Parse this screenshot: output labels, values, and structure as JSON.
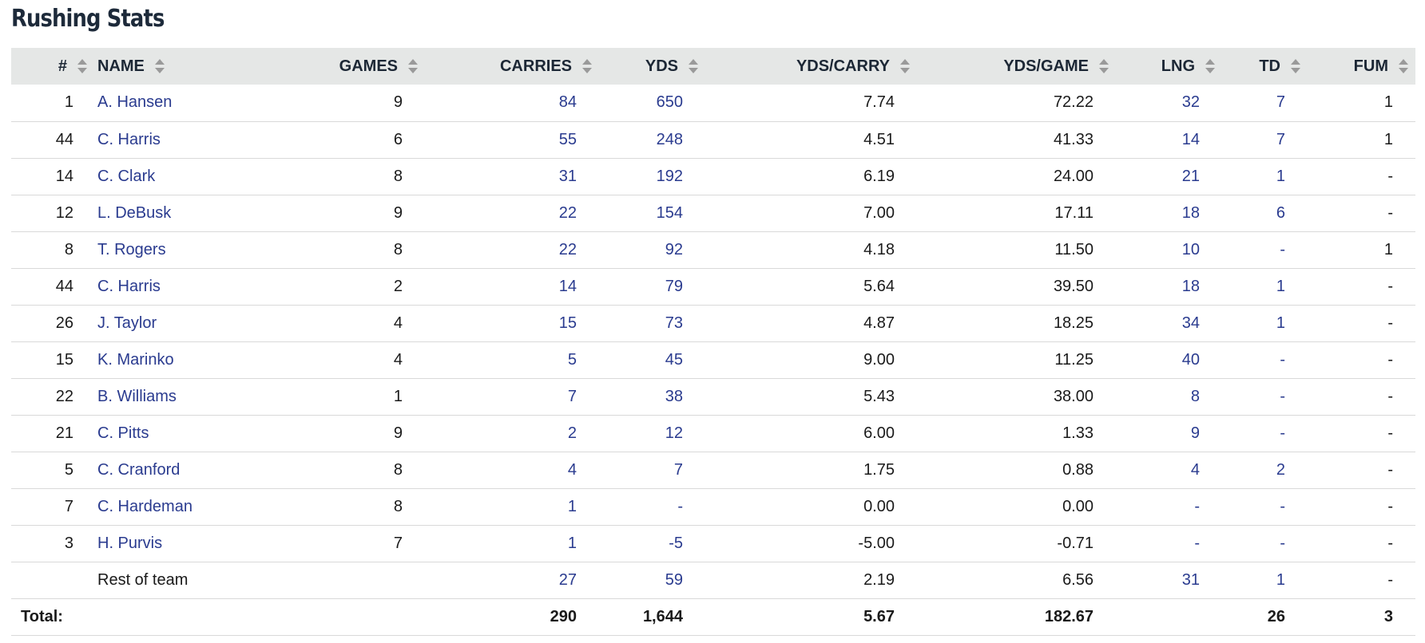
{
  "title": "Rushing Stats",
  "colors": {
    "header_bg": "#e5e7e6",
    "link": "#2a3b8f",
    "row_border": "#d9d9d9"
  },
  "columns": [
    "#",
    "NAME",
    "GAMES",
    "CARRIES",
    "YDS",
    "YDS/CARRY",
    "YDS/GAME",
    "LNG",
    "TD",
    "FUM"
  ],
  "sort_icon": "sort-up-down-icon",
  "rows": [
    {
      "num": "1",
      "name": "A. Hansen",
      "games": "9",
      "carries": "84",
      "yds": "650",
      "ypc": "7.74",
      "ypg": "72.22",
      "lng": "32",
      "td": "7",
      "fum": "1"
    },
    {
      "num": "44",
      "name": "C. Harris",
      "games": "6",
      "carries": "55",
      "yds": "248",
      "ypc": "4.51",
      "ypg": "41.33",
      "lng": "14",
      "td": "7",
      "fum": "1"
    },
    {
      "num": "14",
      "name": "C. Clark",
      "games": "8",
      "carries": "31",
      "yds": "192",
      "ypc": "6.19",
      "ypg": "24.00",
      "lng": "21",
      "td": "1",
      "fum": "-"
    },
    {
      "num": "12",
      "name": "L. DeBusk",
      "games": "9",
      "carries": "22",
      "yds": "154",
      "ypc": "7.00",
      "ypg": "17.11",
      "lng": "18",
      "td": "6",
      "fum": "-"
    },
    {
      "num": "8",
      "name": "T. Rogers",
      "games": "8",
      "carries": "22",
      "yds": "92",
      "ypc": "4.18",
      "ypg": "11.50",
      "lng": "10",
      "td": "-",
      "fum": "1"
    },
    {
      "num": "44",
      "name": "C. Harris",
      "games": "2",
      "carries": "14",
      "yds": "79",
      "ypc": "5.64",
      "ypg": "39.50",
      "lng": "18",
      "td": "1",
      "fum": "-"
    },
    {
      "num": "26",
      "name": "J. Taylor",
      "games": "4",
      "carries": "15",
      "yds": "73",
      "ypc": "4.87",
      "ypg": "18.25",
      "lng": "34",
      "td": "1",
      "fum": "-"
    },
    {
      "num": "15",
      "name": "K. Marinko",
      "games": "4",
      "carries": "5",
      "yds": "45",
      "ypc": "9.00",
      "ypg": "11.25",
      "lng": "40",
      "td": "-",
      "fum": "-"
    },
    {
      "num": "22",
      "name": "B. Williams",
      "games": "1",
      "carries": "7",
      "yds": "38",
      "ypc": "5.43",
      "ypg": "38.00",
      "lng": "8",
      "td": "-",
      "fum": "-"
    },
    {
      "num": "21",
      "name": "C. Pitts",
      "games": "9",
      "carries": "2",
      "yds": "12",
      "ypc": "6.00",
      "ypg": "1.33",
      "lng": "9",
      "td": "-",
      "fum": "-"
    },
    {
      "num": "5",
      "name": "C. Cranford",
      "games": "8",
      "carries": "4",
      "yds": "7",
      "ypc": "1.75",
      "ypg": "0.88",
      "lng": "4",
      "td": "2",
      "fum": "-"
    },
    {
      "num": "7",
      "name": "C. Hardeman",
      "games": "8",
      "carries": "1",
      "yds": "-",
      "ypc": "0.00",
      "ypg": "0.00",
      "lng": "-",
      "td": "-",
      "fum": "-"
    },
    {
      "num": "3",
      "name": "H. Purvis",
      "games": "7",
      "carries": "1",
      "yds": "-5",
      "ypc": "-5.00",
      "ypg": "-0.71",
      "lng": "-",
      "td": "-",
      "fum": "-"
    }
  ],
  "rest_of_team": {
    "label": "Rest of team",
    "carries": "27",
    "yds": "59",
    "ypc": "2.19",
    "ypg": "6.56",
    "lng": "31",
    "td": "1",
    "fum": "-"
  },
  "total": {
    "label": "Total:",
    "carries": "290",
    "yds": "1,644",
    "ypc": "5.67",
    "ypg": "182.67",
    "td": "26",
    "fum": "3"
  }
}
